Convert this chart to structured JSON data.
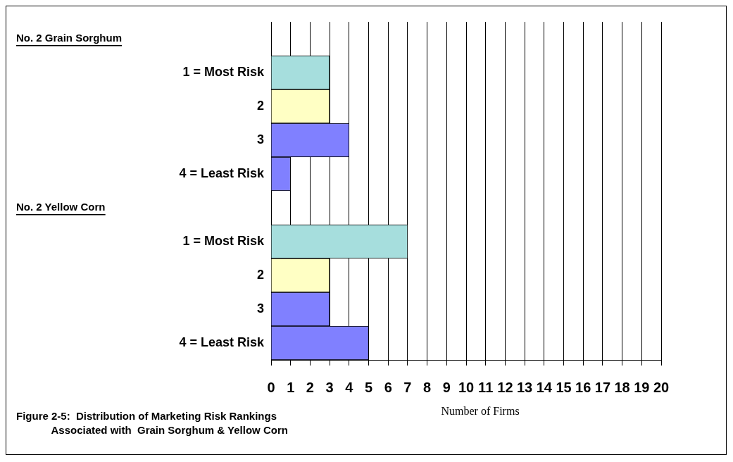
{
  "chart_data": {
    "type": "bar",
    "orientation": "horizontal",
    "title": "Figure 2-5:  Distribution of Marketing Risk Rankings\n            Associated with  Grain Sorghum & Yellow Corn",
    "xlabel": "Number of Firms",
    "annotations": [
      "No. 2 Grain Sorghum",
      "No. 2 Yellow Corn"
    ],
    "categories": [
      null,
      "1 = Most Risk",
      "2",
      "3",
      "4 = Least Risk",
      null,
      "1 = Most Risk",
      "2",
      "3",
      "4 = Least Risk"
    ],
    "values": [
      null,
      3,
      3,
      4,
      1,
      null,
      7,
      3,
      3,
      5
    ],
    "colors": [
      "#8080ff",
      "#a6dedd",
      "#ffffc4",
      "#8080ff",
      "#8080ff",
      "#8080ff",
      "#a6dedd",
      "#ffffc4",
      "#8080ff",
      "#8080ff"
    ],
    "xlim": [
      0,
      20
    ],
    "xticks": [
      0,
      1,
      2,
      3,
      4,
      5,
      6,
      7,
      8,
      9,
      10,
      11,
      12,
      13,
      14,
      15,
      16,
      17,
      18,
      19,
      20
    ],
    "grid": "x",
    "legend": false
  }
}
